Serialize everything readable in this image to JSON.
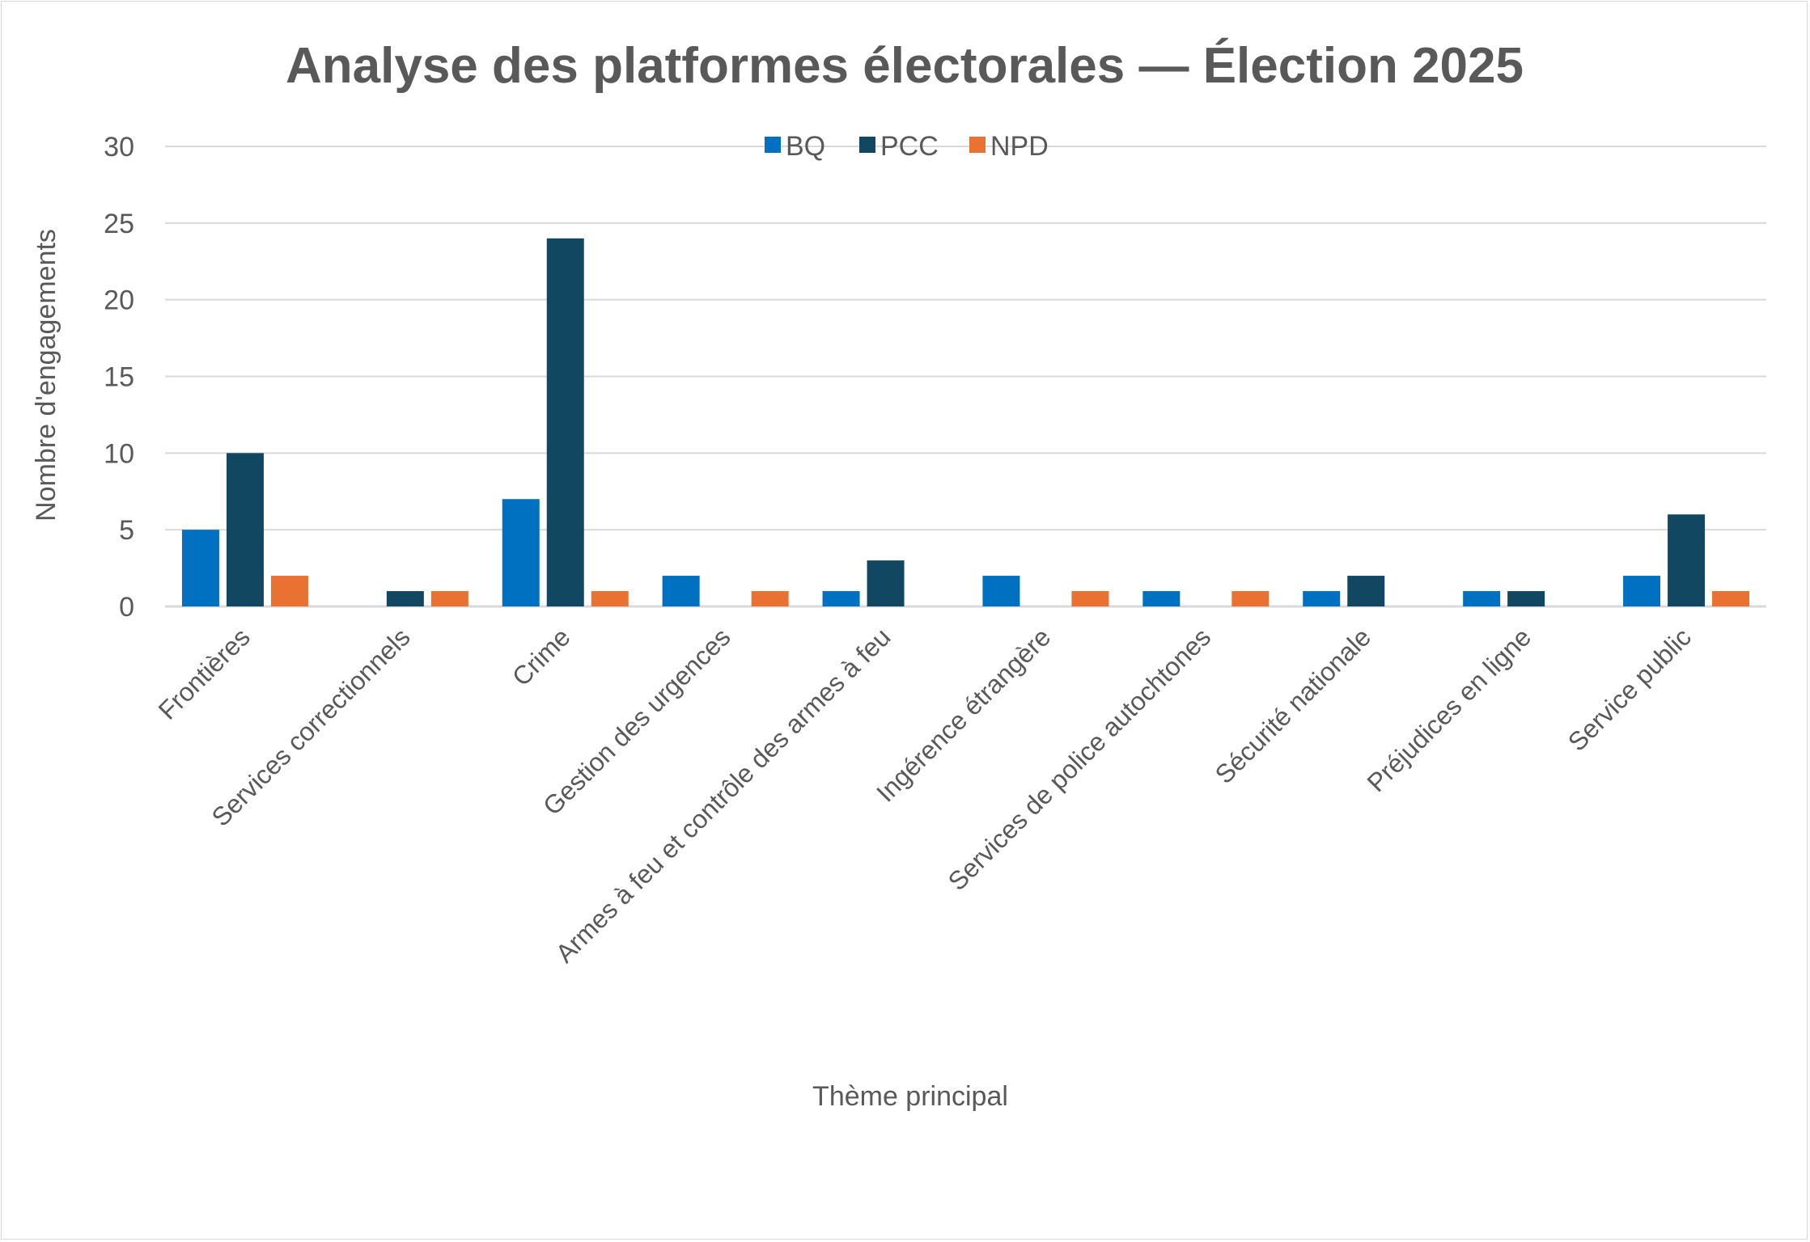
{
  "chart_data": {
    "type": "bar",
    "title": "Analyse des platformes électorales — Élection 2025",
    "xlabel": "Thème principal",
    "ylabel": "Nombre d'engagements",
    "ylim": [
      0,
      30
    ],
    "yticks": [
      0,
      5,
      10,
      15,
      20,
      25,
      30
    ],
    "grid": true,
    "legend": "top-center",
    "categories": [
      "Frontières",
      "Services correctionnels",
      "Crime",
      "Gestion des urgences",
      "Armes à feu et contrôle des armes à feu",
      "Ingérence étrangère",
      "Services de police autochtones",
      "Sécurité nationale",
      "Préjudices en ligne",
      "Service public"
    ],
    "series": [
      {
        "name": "BQ",
        "color": "#0070C0",
        "values": [
          5,
          0,
          7,
          2,
          1,
          2,
          1,
          1,
          1,
          2
        ]
      },
      {
        "name": "PCC",
        "color": "#124762",
        "values": [
          10,
          1,
          24,
          0,
          3,
          0,
          0,
          2,
          1,
          6
        ]
      },
      {
        "name": "NPD",
        "color": "#E97132",
        "values": [
          2,
          1,
          1,
          1,
          0,
          1,
          1,
          0,
          0,
          1
        ]
      }
    ]
  }
}
